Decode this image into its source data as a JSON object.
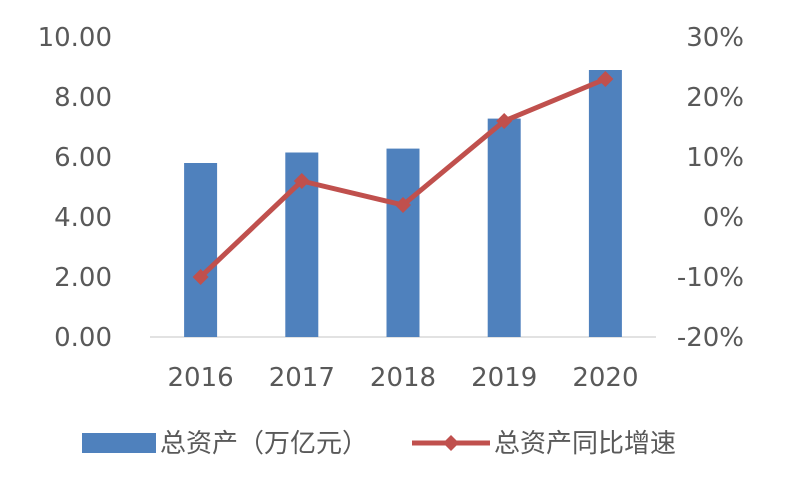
{
  "chart_data": {
    "type": "bar",
    "categories": [
      "2016",
      "2017",
      "2018",
      "2019",
      "2020"
    ],
    "series": [
      {
        "name": "总资产（万亿元）",
        "type": "bar",
        "axis": "left",
        "color": "#4F81BD",
        "values": [
          5.8,
          6.15,
          6.28,
          7.28,
          8.9
        ]
      },
      {
        "name": "总资产同比增速",
        "type": "line",
        "axis": "right",
        "color": "#C0504D",
        "marker": "diamond",
        "values": [
          -10,
          6,
          2,
          16,
          23
        ]
      }
    ],
    "y_left": {
      "ylim": [
        0,
        10
      ],
      "ticks": [
        "10.00",
        "8.00",
        "6.00",
        "4.00",
        "2.00",
        "0.00"
      ]
    },
    "y_right": {
      "ylim": [
        -20,
        30
      ],
      "ticks": [
        "30%",
        "20%",
        "10%",
        "0%",
        "-10%",
        "-20%"
      ]
    },
    "grid": false,
    "legend": "bottom"
  }
}
